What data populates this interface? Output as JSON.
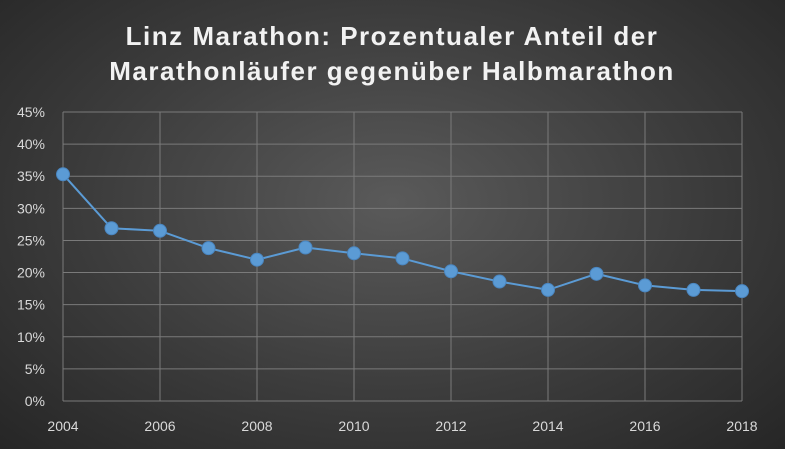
{
  "chart_data": {
    "type": "line",
    "title_lines": [
      "Linz Marathon: Prozentualer Anteil der",
      "Marathonläufer gegenüber Halbmarathon"
    ],
    "x": [
      2004,
      2005,
      2006,
      2007,
      2008,
      2009,
      2010,
      2011,
      2012,
      2013,
      2014,
      2015,
      2016,
      2017,
      2018
    ],
    "values": [
      35.3,
      26.9,
      26.5,
      23.8,
      22.0,
      23.9,
      23.0,
      22.2,
      20.2,
      18.6,
      17.3,
      19.8,
      18.0,
      17.3,
      17.1
    ],
    "x_tick_labels": [
      "2004",
      "2006",
      "2008",
      "2010",
      "2012",
      "2014",
      "2016",
      "2018"
    ],
    "y_tick_labels": [
      "0%",
      "5%",
      "10%",
      "15%",
      "20%",
      "25%",
      "30%",
      "35%",
      "40%",
      "45%"
    ],
    "xlim": [
      2004,
      2018
    ],
    "ylim": [
      0,
      45
    ],
    "grid": true,
    "legend": "none",
    "series_color": "#5b9bd5",
    "marker_color": "#5b9bd5"
  }
}
